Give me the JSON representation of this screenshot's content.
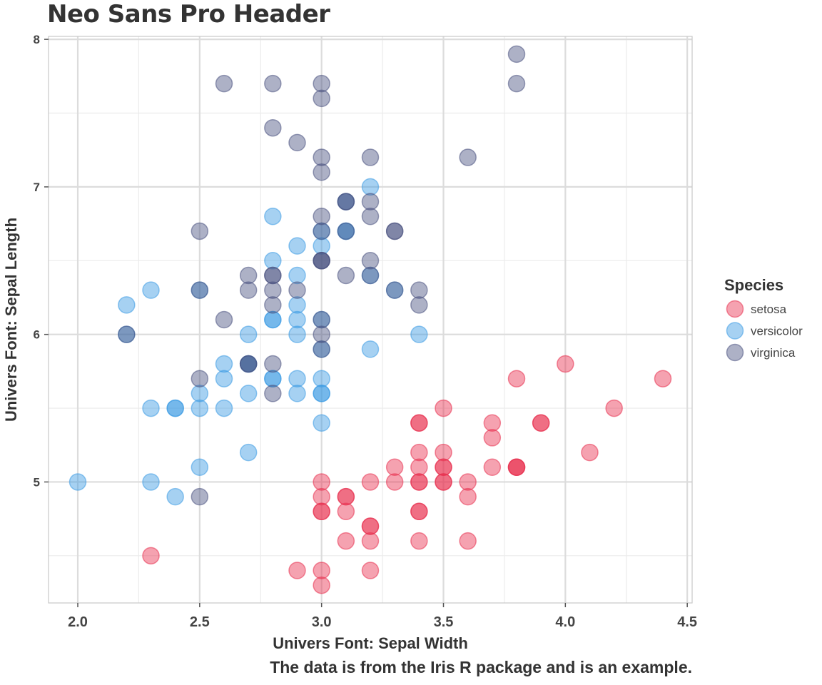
{
  "chart_data": {
    "type": "scatter",
    "title": "Neo Sans Pro Header",
    "xlabel": "Univers Font: Sepal Width",
    "ylabel": "Univers Font: Sepal Length",
    "caption": "The data is from the Iris R package and is an example.",
    "xlim": [
      1.88,
      4.52
    ],
    "ylim": [
      4.18,
      8.02
    ],
    "x_ticks": [
      2.0,
      2.5,
      3.0,
      3.5,
      4.0,
      4.5
    ],
    "x_tick_labels": [
      "2.0",
      "2.5",
      "3.0",
      "3.5",
      "4.0",
      "4.5"
    ],
    "y_ticks": [
      5,
      6,
      7,
      8
    ],
    "y_tick_labels": [
      "5",
      "6",
      "7",
      "8"
    ],
    "grid": true,
    "legend": {
      "title": "Species",
      "position": "right"
    },
    "series": [
      {
        "name": "setosa",
        "color": "#e8304f",
        "points": [
          [
            3.5,
            5.1
          ],
          [
            3.0,
            4.9
          ],
          [
            3.2,
            4.7
          ],
          [
            3.1,
            4.6
          ],
          [
            3.6,
            5.0
          ],
          [
            3.9,
            5.4
          ],
          [
            3.4,
            4.6
          ],
          [
            3.4,
            5.0
          ],
          [
            2.9,
            4.4
          ],
          [
            3.1,
            4.9
          ],
          [
            3.7,
            5.4
          ],
          [
            3.4,
            4.8
          ],
          [
            3.0,
            4.8
          ],
          [
            3.0,
            4.3
          ],
          [
            4.0,
            5.8
          ],
          [
            4.4,
            5.7
          ],
          [
            3.9,
            5.4
          ],
          [
            3.5,
            5.1
          ],
          [
            3.8,
            5.7
          ],
          [
            3.8,
            5.1
          ],
          [
            3.4,
            5.4
          ],
          [
            3.7,
            5.1
          ],
          [
            3.6,
            4.6
          ],
          [
            3.3,
            5.1
          ],
          [
            3.4,
            4.8
          ],
          [
            3.0,
            5.0
          ],
          [
            3.4,
            5.0
          ],
          [
            3.5,
            5.2
          ],
          [
            3.4,
            5.2
          ],
          [
            3.2,
            4.7
          ],
          [
            3.1,
            4.8
          ],
          [
            3.4,
            5.4
          ],
          [
            4.1,
            5.2
          ],
          [
            4.2,
            5.5
          ],
          [
            3.1,
            4.9
          ],
          [
            3.2,
            5.0
          ],
          [
            3.5,
            5.5
          ],
          [
            3.6,
            4.9
          ],
          [
            3.0,
            4.4
          ],
          [
            3.4,
            5.1
          ],
          [
            3.5,
            5.0
          ],
          [
            2.3,
            4.5
          ],
          [
            3.2,
            4.4
          ],
          [
            3.5,
            5.0
          ],
          [
            3.8,
            5.1
          ],
          [
            3.0,
            4.8
          ],
          [
            3.8,
            5.1
          ],
          [
            3.2,
            4.6
          ],
          [
            3.7,
            5.3
          ],
          [
            3.3,
            5.0
          ]
        ]
      },
      {
        "name": "versicolor",
        "color": "#3a9ae3",
        "points": [
          [
            3.2,
            7.0
          ],
          [
            3.2,
            6.4
          ],
          [
            3.1,
            6.9
          ],
          [
            2.3,
            5.5
          ],
          [
            2.8,
            6.5
          ],
          [
            2.8,
            5.7
          ],
          [
            3.3,
            6.3
          ],
          [
            2.4,
            4.9
          ],
          [
            2.9,
            6.6
          ],
          [
            2.7,
            5.2
          ],
          [
            2.0,
            5.0
          ],
          [
            3.0,
            5.9
          ],
          [
            2.2,
            6.0
          ],
          [
            2.9,
            6.1
          ],
          [
            2.9,
            5.6
          ],
          [
            3.1,
            6.7
          ],
          [
            3.0,
            5.6
          ],
          [
            2.7,
            5.8
          ],
          [
            2.2,
            6.2
          ],
          [
            2.5,
            5.6
          ],
          [
            3.2,
            5.9
          ],
          [
            2.8,
            6.1
          ],
          [
            2.5,
            6.3
          ],
          [
            2.8,
            6.1
          ],
          [
            2.9,
            6.4
          ],
          [
            3.0,
            6.6
          ],
          [
            2.8,
            6.8
          ],
          [
            3.0,
            6.7
          ],
          [
            2.9,
            6.0
          ],
          [
            2.6,
            5.7
          ],
          [
            2.4,
            5.5
          ],
          [
            2.4,
            5.5
          ],
          [
            2.7,
            5.8
          ],
          [
            2.7,
            6.0
          ],
          [
            3.0,
            5.4
          ],
          [
            3.4,
            6.0
          ],
          [
            3.1,
            6.7
          ],
          [
            2.3,
            6.3
          ],
          [
            3.0,
            5.6
          ],
          [
            2.5,
            5.5
          ],
          [
            2.6,
            5.5
          ],
          [
            3.0,
            6.1
          ],
          [
            2.6,
            5.8
          ],
          [
            2.3,
            5.0
          ],
          [
            2.7,
            5.6
          ],
          [
            3.0,
            5.7
          ],
          [
            2.9,
            5.7
          ],
          [
            2.9,
            6.2
          ],
          [
            2.5,
            5.1
          ],
          [
            2.8,
            5.7
          ]
        ]
      },
      {
        "name": "virginica",
        "color": "#4a5280",
        "points": [
          [
            3.3,
            6.3
          ],
          [
            2.7,
            5.8
          ],
          [
            3.0,
            7.1
          ],
          [
            2.9,
            6.3
          ],
          [
            3.0,
            6.5
          ],
          [
            3.0,
            7.6
          ],
          [
            2.5,
            4.9
          ],
          [
            2.9,
            7.3
          ],
          [
            2.5,
            6.7
          ],
          [
            3.6,
            7.2
          ],
          [
            3.2,
            6.5
          ],
          [
            2.7,
            6.4
          ],
          [
            3.0,
            6.8
          ],
          [
            2.5,
            5.7
          ],
          [
            2.8,
            5.8
          ],
          [
            3.2,
            6.4
          ],
          [
            3.0,
            6.5
          ],
          [
            3.8,
            7.7
          ],
          [
            2.6,
            7.7
          ],
          [
            2.2,
            6.0
          ],
          [
            3.2,
            6.9
          ],
          [
            2.8,
            5.6
          ],
          [
            2.8,
            7.7
          ],
          [
            2.7,
            6.3
          ],
          [
            3.3,
            6.7
          ],
          [
            3.2,
            7.2
          ],
          [
            2.8,
            6.2
          ],
          [
            3.0,
            6.1
          ],
          [
            2.8,
            6.4
          ],
          [
            3.0,
            7.2
          ],
          [
            2.8,
            7.4
          ],
          [
            3.8,
            7.9
          ],
          [
            2.8,
            6.4
          ],
          [
            2.8,
            6.3
          ],
          [
            2.6,
            6.1
          ],
          [
            3.0,
            7.7
          ],
          [
            3.4,
            6.3
          ],
          [
            3.1,
            6.4
          ],
          [
            3.0,
            6.0
          ],
          [
            3.1,
            6.9
          ],
          [
            3.1,
            6.7
          ],
          [
            3.1,
            6.9
          ],
          [
            2.7,
            5.8
          ],
          [
            3.2,
            6.8
          ],
          [
            3.3,
            6.7
          ],
          [
            3.0,
            6.7
          ],
          [
            2.5,
            6.3
          ],
          [
            3.0,
            6.5
          ],
          [
            3.4,
            6.2
          ],
          [
            3.0,
            5.9
          ]
        ]
      }
    ]
  }
}
